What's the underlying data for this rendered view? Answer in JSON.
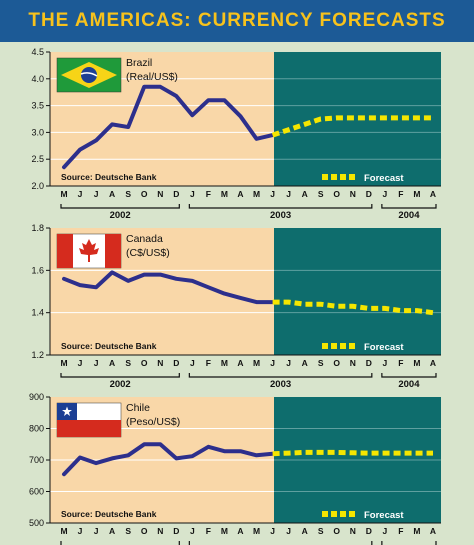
{
  "title": "THE AMERICAS: CURRENCY FORECASTS",
  "colors": {
    "title_bg": "#1c5a96",
    "title_text": "#f7c21c",
    "history_bg": "#f9d7a8",
    "forecast_bg": "#0e6d6d",
    "history_line": "#2d2f8c",
    "forecast_line": "#f5e600",
    "page_bg": "#d8e4cc"
  },
  "chart_data": [
    {
      "type": "line",
      "country": "Brazil",
      "unit": "(Real/US$)",
      "flag": "brazil-flag",
      "source": "Source: Deutsche Bank",
      "forecast_label": "Forecast",
      "ylim": [
        2.0,
        4.5
      ],
      "yticks": [
        "4.5",
        "4.0",
        "3.5",
        "3.0",
        "2.5",
        "2.0"
      ],
      "ytick_values": [
        4.5,
        4.0,
        3.5,
        3.0,
        2.5,
        2.0
      ],
      "months": [
        "M",
        "J",
        "J",
        "A",
        "S",
        "O",
        "N",
        "D",
        "J",
        "F",
        "M",
        "A",
        "M",
        "J",
        "J",
        "A",
        "S",
        "O",
        "N",
        "D",
        "J",
        "F",
        "M",
        "A"
      ],
      "years": [
        {
          "label": "2002",
          "from": 0,
          "to": 7
        },
        {
          "label": "2003",
          "from": 8,
          "to": 19
        },
        {
          "label": "2004",
          "from": 20,
          "to": 23
        }
      ],
      "history": [
        2.35,
        2.68,
        2.85,
        3.15,
        3.1,
        3.85,
        3.85,
        3.68,
        3.32,
        3.6,
        3.6,
        3.3,
        2.88,
        2.95
      ],
      "forecast": [
        2.95,
        3.05,
        3.15,
        3.25,
        3.27,
        3.27,
        3.27,
        3.27,
        3.27,
        3.27,
        3.27
      ]
    },
    {
      "type": "line",
      "country": "Canada",
      "unit": "(C$/US$)",
      "flag": "canada-flag",
      "source": "Source: Deutsche Bank",
      "forecast_label": "Forecast",
      "ylim": [
        1.2,
        1.8
      ],
      "yticks": [
        "1.8",
        "1.6",
        "1.4",
        "1.2"
      ],
      "ytick_values": [
        1.8,
        1.6,
        1.4,
        1.2
      ],
      "months": [
        "M",
        "J",
        "J",
        "A",
        "S",
        "O",
        "N",
        "D",
        "J",
        "F",
        "M",
        "A",
        "M",
        "J",
        "J",
        "A",
        "S",
        "O",
        "N",
        "D",
        "J",
        "F",
        "M",
        "A"
      ],
      "years": [
        {
          "label": "2002",
          "from": 0,
          "to": 7
        },
        {
          "label": "2003",
          "from": 8,
          "to": 19
        },
        {
          "label": "2004",
          "from": 20,
          "to": 23
        }
      ],
      "history": [
        1.56,
        1.53,
        1.52,
        1.59,
        1.55,
        1.58,
        1.58,
        1.56,
        1.55,
        1.52,
        1.49,
        1.47,
        1.45,
        1.45
      ],
      "forecast": [
        1.45,
        1.45,
        1.44,
        1.44,
        1.43,
        1.43,
        1.42,
        1.42,
        1.41,
        1.41,
        1.4
      ]
    },
    {
      "type": "line",
      "country": "Chile",
      "unit": "(Peso/US$)",
      "flag": "chile-flag",
      "source": "Source: Deutsche Bank",
      "forecast_label": "Forecast",
      "ylim": [
        500,
        900
      ],
      "yticks": [
        "900",
        "800",
        "700",
        "600",
        "500"
      ],
      "ytick_values": [
        900,
        800,
        700,
        600,
        500
      ],
      "months": [
        "M",
        "J",
        "J",
        "A",
        "S",
        "O",
        "N",
        "D",
        "J",
        "F",
        "M",
        "A",
        "M",
        "J",
        "J",
        "A",
        "S",
        "O",
        "N",
        "D",
        "J",
        "F",
        "M",
        "A"
      ],
      "history": [
        655,
        708,
        690,
        705,
        715,
        750,
        750,
        705,
        712,
        742,
        728,
        728,
        715,
        720
      ],
      "forecast": [
        720,
        722,
        724,
        724,
        724,
        723,
        722,
        722,
        722,
        722,
        722
      ]
    }
  ]
}
